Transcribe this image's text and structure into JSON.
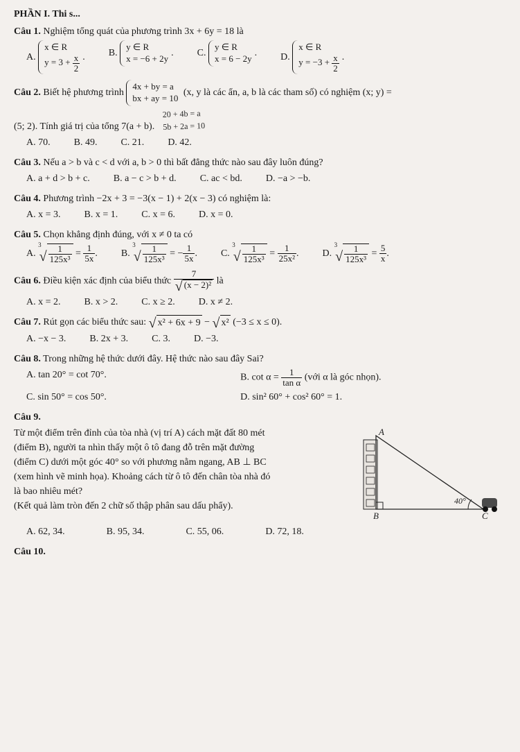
{
  "header": {
    "phan": "PHẦN I. Thi s..."
  },
  "q1": {
    "title": "Câu 1.",
    "text": "Nghiệm tổng quát của phương trình 3x + 6y = 18 là",
    "A": {
      "label": "A.",
      "l1": "x ∈ R",
      "l2_pre": "y = 3 + ",
      "l2_num": "x",
      "l2_den": "2"
    },
    "B": {
      "label": "B.",
      "l1": "y ∈ R",
      "l2": "x = −6 + 2y"
    },
    "C": {
      "label": "C.",
      "l1": "y ∈ R",
      "l2": "x = 6 − 2y"
    },
    "D": {
      "label": "D.",
      "l1": "x ∈ R",
      "l2_pre": "y = −3 + ",
      "l2_num": "x",
      "l2_den": "2"
    },
    "dot": "."
  },
  "q2": {
    "title": "Câu 2.",
    "text1": "Biết hệ phương trình",
    "sysl1": "4x + by = a",
    "sysl2": "bx + ay = 10",
    "text2": "(x, y là các ẩn, a, b là các tham số) có nghiệm (x; y) =",
    "line2": "(5; 2). Tính giá trị của tổng 7(a + b).",
    "hand1": "20 + 4b = a",
    "hand2": "5b + 2a = 10",
    "A": "A. 70.",
    "B": "B. 49.",
    "C": "C. 21.",
    "D": "D. 42."
  },
  "q3": {
    "title": "Câu 3.",
    "text": "Nếu a > b và c < d với a, b > 0 thì bất đẳng thức nào sau đây luôn đúng?",
    "A": "A. a + d > b + c.",
    "B": "B. a − c > b + d.",
    "C": "C. ac < bd.",
    "D": "D. −a > −b."
  },
  "q4": {
    "title": "Câu 4.",
    "text": "Phương trình −2x + 3 = −3(x − 1) + 2(x − 3) có nghiệm là:",
    "A": "A. x = 3.",
    "B": "B. x = 1.",
    "C": "C. x = 6.",
    "D": "D. x = 0."
  },
  "q5": {
    "title": "Câu 5.",
    "text": "Chọn khẳng định đúng, với x ≠ 0 ta có",
    "A": {
      "label": "A.",
      "idx": "3",
      "rad_num": "1",
      "rad_den": "125x³",
      "eq": " = ",
      "r_num": "1",
      "r_den": "5x",
      "dot": "."
    },
    "B": {
      "label": "B.",
      "idx": "3",
      "rad_num": "1",
      "rad_den": "125x³",
      "eq": " = −",
      "r_num": "1",
      "r_den": "5x",
      "dot": "."
    },
    "C": {
      "label": "C.",
      "idx": "3",
      "rad_num": "1",
      "rad_den": "125x³",
      "eq": " = ",
      "r_num": "1",
      "r_den": "25x²",
      "dot": "."
    },
    "D": {
      "label": "D.",
      "idx": "3",
      "rad_num": "1",
      "rad_den": "125x³",
      "eq": " = ",
      "r_num": "5",
      "r_den": "x",
      "dot": "."
    }
  },
  "q6": {
    "title": "Câu 6.",
    "text_pre": "Điều kiện xác định của biểu thức ",
    "num": "7",
    "den_rad": "(x − 2)²",
    "text_post": " là",
    "A": "A. x = 2.",
    "B": "B. x > 2.",
    "C": "C. x ≥ 2.",
    "D": "D. x ≠ 2."
  },
  "q7": {
    "title": "Câu 7.",
    "text_pre": "Rút gọn các biểu thức sau: ",
    "rad1": "x² + 6x + 9",
    "minus": " − ",
    "rad2": "x²",
    "cond": "   (−3 ≤ x ≤ 0).",
    "A": "A. −x − 3.",
    "B": "B. 2x + 3.",
    "C": "C. 3.",
    "D": "D. −3."
  },
  "q8": {
    "title": "Câu 8.",
    "text": "Trong những hệ thức dưới đây. Hệ thức nào sau đây Sai?",
    "A": "A. tan 20° = cot 70°.",
    "B_pre": "B. cot α = ",
    "B_num": "1",
    "B_den": "tan α",
    "B_post": " (với α là góc nhọn).",
    "C": "C. sin 50° = cos 50°.",
    "D": "D. sin² 60° + cos² 60° = 1."
  },
  "q9": {
    "title": "Câu 9.",
    "p1": "Từ một điểm trên đỉnh của tòa nhà (vị trí A) cách mặt đất 80 mét",
    "p2": "(điểm B), người ta nhìn thấy một ô tô đang đỗ trên mặt đường",
    "p3": "(điểm C) dưới một góc 40° so với phương nằm ngang, AB ⊥ BC",
    "p4": "(xem hình vẽ minh họa). Khoảng cách từ ô tô đến chân tòa nhà đó",
    "p5": "là bao nhiêu mét?",
    "p6": "(Kết quả làm tròn đến 2 chữ số thập phân sau dấu phẩy).",
    "figure": {
      "labelA": "A",
      "labelB": "B",
      "labelC": "C",
      "angle": "40°",
      "stroke": "#222222",
      "fill_building": "#e9e5e0",
      "fill_car": "#4a4a4a"
    },
    "A": "A. 62, 34.",
    "B": "B. 95, 34.",
    "C": "C. 55, 06.",
    "D": "D. 72, 18."
  },
  "q10": {
    "title": "Câu 10."
  }
}
